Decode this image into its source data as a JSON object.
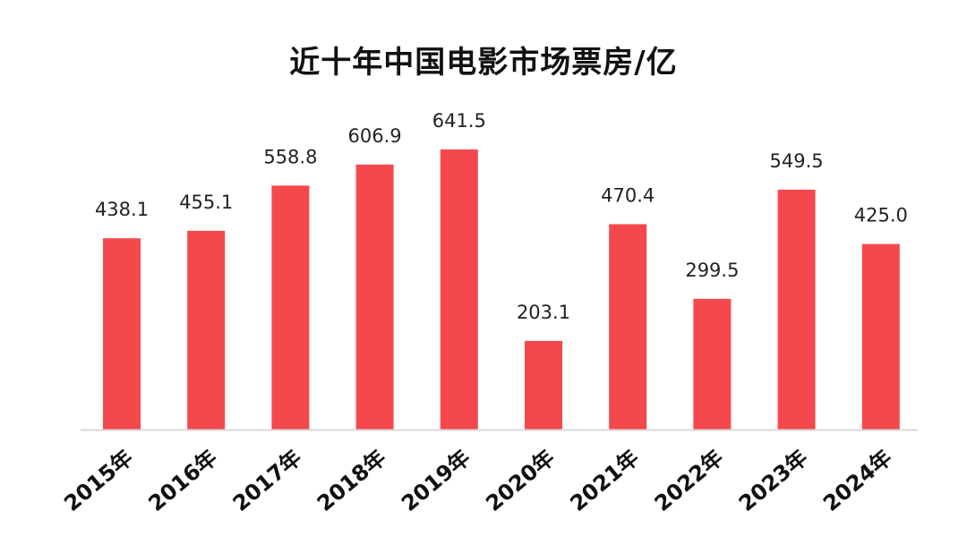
{
  "chart_data": {
    "type": "bar",
    "title": "近十年中国电影市场票房/亿",
    "categories": [
      "2015年",
      "2016年",
      "2017年",
      "2018年",
      "2019年",
      "2020年",
      "2021年",
      "2022年",
      "2023年",
      "2024年"
    ],
    "values": [
      438.1,
      455.1,
      558.8,
      606.9,
      641.5,
      203.1,
      470.4,
      299.5,
      549.5,
      425.0
    ],
    "value_labels": [
      "438.1",
      "455.1",
      "558.8",
      "606.9",
      "641.5",
      "203.1",
      "470.4",
      "299.5",
      "549.5",
      "425.0"
    ],
    "xlabel": "",
    "ylabel": "",
    "ylim": [
      0,
      641.5
    ],
    "grid": false,
    "legend": "none",
    "colors": {
      "bar": "#f5484d",
      "axis": "#d9d9d9"
    }
  }
}
